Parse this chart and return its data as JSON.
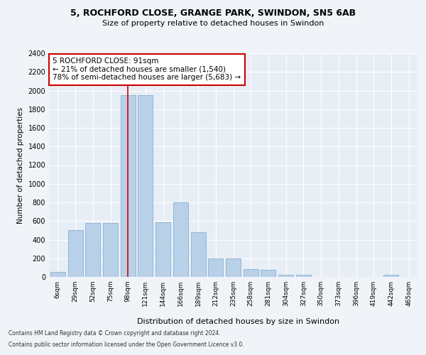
{
  "title1": "5, ROCHFORD CLOSE, GRANGE PARK, SWINDON, SN5 6AB",
  "title2": "Size of property relative to detached houses in Swindon",
  "xlabel": "Distribution of detached houses by size in Swindon",
  "ylabel": "Number of detached properties",
  "categories": [
    "6sqm",
    "29sqm",
    "52sqm",
    "75sqm",
    "98sqm",
    "121sqm",
    "144sqm",
    "166sqm",
    "189sqm",
    "212sqm",
    "235sqm",
    "258sqm",
    "281sqm",
    "304sqm",
    "327sqm",
    "350sqm",
    "373sqm",
    "396sqm",
    "419sqm",
    "442sqm",
    "465sqm"
  ],
  "values": [
    50,
    500,
    580,
    580,
    1950,
    1950,
    590,
    800,
    480,
    195,
    195,
    85,
    80,
    25,
    25,
    0,
    0,
    0,
    0,
    20,
    0
  ],
  "bar_color": "#b8d0e8",
  "bar_edge_color": "#7aa8cc",
  "annotation_text": "5 ROCHFORD CLOSE: 91sqm\n← 21% of detached houses are smaller (1,540)\n78% of semi-detached houses are larger (5,683) →",
  "annotation_border_color": "#cc0000",
  "vline_color": "#cc0000",
  "vline_x": 4.0,
  "ylim_max": 2400,
  "ytick_step": 200,
  "footer1": "Contains HM Land Registry data © Crown copyright and database right 2024.",
  "footer2": "Contains public sector information licensed under the Open Government Licence v3.0.",
  "fig_bg": "#f0f4f8",
  "plot_bg": "#e8eef5",
  "title1_fontsize": 9,
  "title2_fontsize": 8,
  "ylabel_fontsize": 7.5,
  "xlabel_fontsize": 8,
  "ytick_fontsize": 7,
  "xtick_fontsize": 6.5,
  "footer_fontsize": 5.5
}
